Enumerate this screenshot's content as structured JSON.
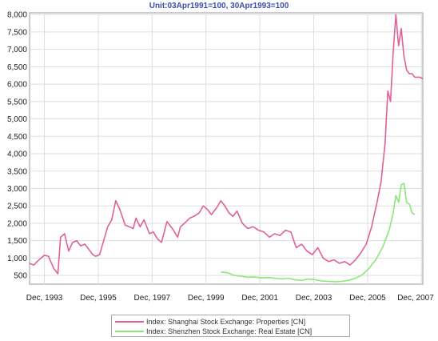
{
  "chart_data": {
    "type": "line",
    "title": "Unit:03Apr1991=100, 30Apr1993=100",
    "xlabel": "",
    "ylabel": "",
    "x_ticks": [
      "Dec, 1993",
      "Dec, 1995",
      "Dec, 1997",
      "Dec, 1999",
      "Dec, 2001",
      "Dec, 2003",
      "Dec, 2005",
      "Dec, 2007"
    ],
    "y_ticks": [
      "500",
      "1,000",
      "1,500",
      "2,000",
      "2,500",
      "3,000",
      "3,500",
      "4,000",
      "4,500",
      "5,000",
      "5,500",
      "6,000",
      "6,500",
      "7,000",
      "7,500",
      "8,000"
    ],
    "xlim": [
      1993.4,
      2008.0
    ],
    "ylim": [
      250,
      8050
    ],
    "grid": true,
    "legend_position": "bottom",
    "series": [
      {
        "name": "Index: Shanghai Stock Exchange: Properties [CN]",
        "color": "#e0609a",
        "x": [
          1993.4,
          1993.55,
          1993.75,
          1993.95,
          1994.1,
          1994.3,
          1994.45,
          1994.55,
          1994.7,
          1994.85,
          1995.0,
          1995.15,
          1995.3,
          1995.45,
          1995.6,
          1995.75,
          1995.85,
          1996.0,
          1996.15,
          1996.3,
          1996.45,
          1996.6,
          1996.75,
          1996.95,
          1997.1,
          1997.25,
          1997.35,
          1997.5,
          1997.65,
          1997.85,
          1998.0,
          1998.15,
          1998.3,
          1998.5,
          1998.7,
          1998.9,
          1999.0,
          1999.15,
          1999.35,
          1999.5,
          1999.7,
          1999.85,
          2000.0,
          2000.15,
          2000.35,
          2000.5,
          2000.65,
          2000.8,
          2000.95,
          2001.1,
          2001.3,
          2001.5,
          2001.7,
          2001.9,
          2002.1,
          2002.3,
          2002.5,
          2002.7,
          2002.9,
          2003.1,
          2003.3,
          2003.5,
          2003.7,
          2003.9,
          2004.1,
          2004.3,
          2004.5,
          2004.7,
          2004.9,
          2005.1,
          2005.3,
          2005.5,
          2005.7,
          2005.9,
          2006.1,
          2006.3,
          2006.45,
          2006.6,
          2006.7,
          2006.8,
          2006.9,
          2007.0,
          2007.1,
          2007.2,
          2007.3,
          2007.4,
          2007.5,
          2007.6,
          2007.7,
          2007.8,
          2007.9,
          2008.0
        ],
        "values": [
          850,
          800,
          950,
          1080,
          1050,
          700,
          550,
          1600,
          1700,
          1200,
          1450,
          1500,
          1350,
          1400,
          1250,
          1100,
          1050,
          1100,
          1500,
          1900,
          2100,
          2650,
          2400,
          1950,
          1900,
          1850,
          2150,
          1900,
          2100,
          1700,
          1750,
          1550,
          1450,
          2050,
          1850,
          1600,
          1900,
          2000,
          2150,
          2200,
          2300,
          2500,
          2400,
          2250,
          2450,
          2650,
          2500,
          2300,
          2200,
          2350,
          2000,
          1850,
          1900,
          1800,
          1750,
          1600,
          1700,
          1650,
          1800,
          1750,
          1300,
          1400,
          1200,
          1100,
          1300,
          1000,
          900,
          950,
          850,
          900,
          800,
          950,
          1150,
          1400,
          1900,
          2600,
          3200,
          4300,
          5800,
          5500,
          6900,
          8000,
          7100,
          7600,
          6800,
          6400,
          6300,
          6300,
          6200,
          6200,
          6200,
          6150
        ]
      },
      {
        "name": "Index: Shenzhen Stock Exchange: Real Estate [CN]",
        "color": "#88e878",
        "x": [
          2000.5,
          2000.75,
          2001.0,
          2001.25,
          2001.5,
          2001.75,
          2002.0,
          2002.25,
          2002.5,
          2002.75,
          2003.0,
          2003.25,
          2003.5,
          2003.75,
          2004.0,
          2004.25,
          2004.5,
          2004.75,
          2005.0,
          2005.25,
          2005.5,
          2005.75,
          2006.0,
          2006.25,
          2006.5,
          2006.75,
          2006.9,
          2007.0,
          2007.1,
          2007.2,
          2007.3,
          2007.4,
          2007.5,
          2007.6,
          2007.7
        ],
        "values": [
          600,
          580,
          500,
          480,
          450,
          460,
          430,
          440,
          420,
          400,
          420,
          380,
          360,
          400,
          380,
          340,
          330,
          320,
          330,
          360,
          420,
          520,
          700,
          950,
          1300,
          1800,
          2300,
          2800,
          2600,
          3100,
          3150,
          2600,
          2550,
          2300,
          2250
        ]
      }
    ]
  }
}
